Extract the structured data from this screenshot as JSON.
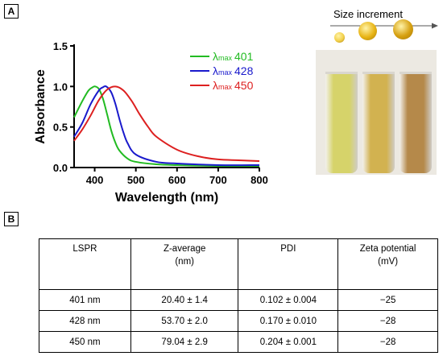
{
  "panel_labels": {
    "a": "A",
    "b": "B"
  },
  "chart_data": {
    "type": "line",
    "title": "",
    "xlabel": "Wavelength (nm)",
    "ylabel": "Absorbance",
    "xlim": [
      350,
      800
    ],
    "ylim": [
      0,
      1.5
    ],
    "x_ticks": [
      400,
      500,
      600,
      700,
      800
    ],
    "y_ticks": [
      0.0,
      0.5,
      1.0,
      1.5
    ],
    "x_tick_labels": [
      "400",
      "500",
      "600",
      "700",
      "800"
    ],
    "y_tick_labels": [
      "0.0",
      "0.5",
      "1.0",
      "1.5"
    ],
    "grid": false,
    "legend_position": "top-right",
    "series": [
      {
        "name": "λmax 401",
        "legend_symbol": "λ",
        "legend_sub": "max",
        "legend_value": "401",
        "color": "#22bb22",
        "x": [
          350,
          370,
          385,
          395,
          401,
          410,
          420,
          430,
          440,
          450,
          460,
          480,
          500,
          550,
          600,
          700,
          800
        ],
        "y": [
          0.62,
          0.82,
          0.95,
          0.99,
          1.0,
          0.97,
          0.85,
          0.66,
          0.46,
          0.31,
          0.21,
          0.11,
          0.07,
          0.04,
          0.03,
          0.02,
          0.02
        ]
      },
      {
        "name": "λmax 428",
        "legend_symbol": "λ",
        "legend_sub": "max",
        "legend_value": "428",
        "color": "#1a1acc",
        "x": [
          350,
          370,
          390,
          410,
          420,
          428,
          440,
          450,
          460,
          470,
          480,
          500,
          550,
          600,
          700,
          800
        ],
        "y": [
          0.38,
          0.55,
          0.78,
          0.95,
          0.99,
          1.0,
          0.93,
          0.79,
          0.6,
          0.43,
          0.3,
          0.16,
          0.07,
          0.05,
          0.03,
          0.03
        ]
      },
      {
        "name": "λmax 450",
        "legend_symbol": "λ",
        "legend_sub": "max",
        "legend_value": "450",
        "color": "#dd2020",
        "x": [
          350,
          370,
          390,
          410,
          430,
          450,
          470,
          490,
          510,
          530,
          550,
          600,
          650,
          700,
          750,
          800
        ],
        "y": [
          0.33,
          0.47,
          0.64,
          0.83,
          0.96,
          1.0,
          0.95,
          0.82,
          0.65,
          0.5,
          0.38,
          0.22,
          0.14,
          0.1,
          0.09,
          0.08
        ]
      }
    ]
  },
  "size_panel": {
    "label": "Size increment",
    "dot_colors": [
      "#f2d04a",
      "#e8b414",
      "#d6a010"
    ],
    "vial_colors": [
      "#d6d36a",
      "#d2b250",
      "#b5894a"
    ]
  },
  "table": {
    "headers": [
      [
        "LSPR"
      ],
      [
        "Z-average",
        "(nm)"
      ],
      [
        "PDI"
      ],
      [
        "Zeta potential",
        "(mV)"
      ]
    ],
    "rows": [
      [
        "401 nm",
        "20.40 ± 1.4",
        "0.102 ± 0.004",
        "−25"
      ],
      [
        "428 nm",
        "53.70 ± 2.0",
        "0.170 ± 0.010",
        "−28"
      ],
      [
        "450 nm",
        "79.04 ± 2.9",
        "0.204 ± 0.001",
        "−28"
      ]
    ]
  }
}
